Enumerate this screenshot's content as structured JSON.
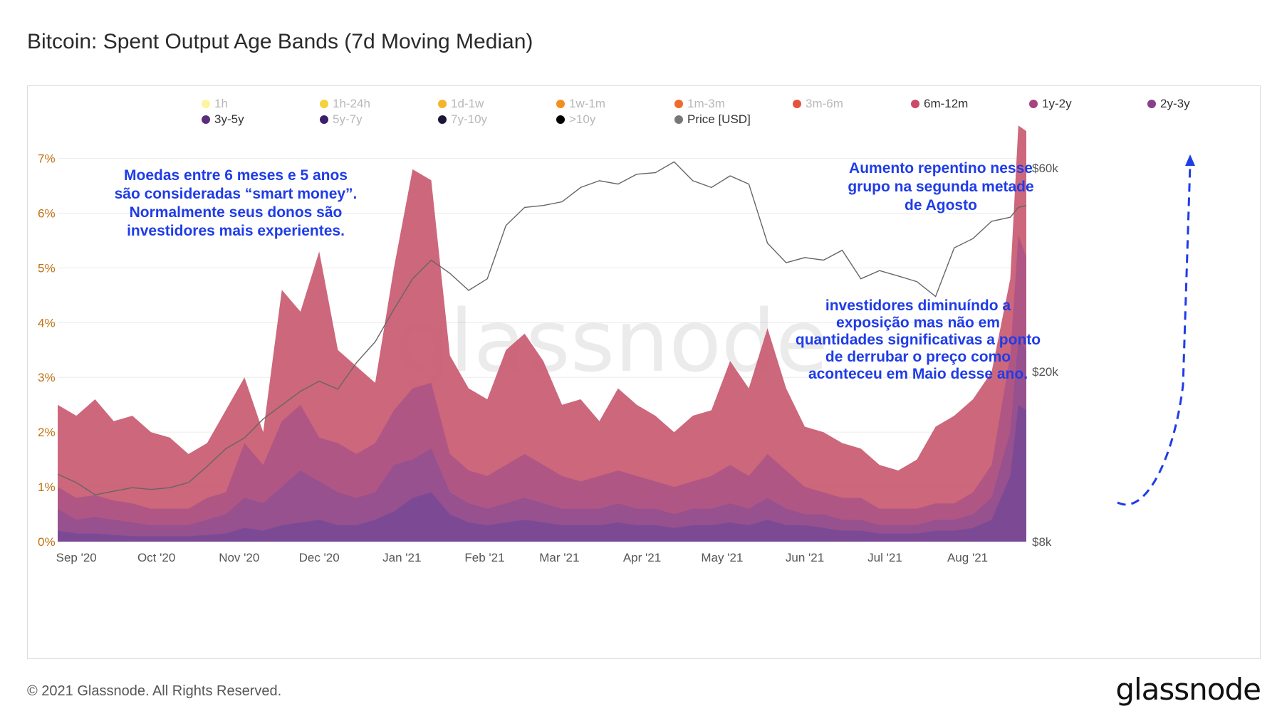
{
  "page": {
    "title": "Bitcoin: Spent Output Age Bands (7d Moving Median)",
    "copyright": "© 2021 Glassnode. All Rights Reserved.",
    "logo": "glassnode",
    "watermark": "glassnode"
  },
  "chart_data": {
    "type": "area",
    "title": "Bitcoin: Spent Output Age Bands (7d Moving Median)",
    "x_ticks": [
      "Sep '20",
      "Oct '20",
      "Nov '20",
      "Dec '20",
      "Jan '21",
      "Feb '21",
      "Mar '21",
      "Apr '21",
      "May '21",
      "Jun '21",
      "Jul '21",
      "Aug '21"
    ],
    "y_left": {
      "ticks": [
        "0%",
        "1%",
        "2%",
        "3%",
        "4%",
        "5%",
        "6%",
        "7%"
      ],
      "ylim": [
        0,
        7.8
      ],
      "unit": "%"
    },
    "y_right": {
      "ticks": [
        "$8k",
        "$20k",
        "$60k"
      ],
      "scale": "log",
      "ylim": [
        8000,
        80000
      ]
    },
    "grid": "horizontal",
    "legend_position": "top",
    "legend": [
      {
        "name": "1h",
        "color": "#fff3a0",
        "active": false
      },
      {
        "name": "1h-24h",
        "color": "#f5d13b",
        "active": false
      },
      {
        "name": "1d-1w",
        "color": "#f5b52a",
        "active": false
      },
      {
        "name": "1w-1m",
        "color": "#f28f1f",
        "active": false
      },
      {
        "name": "1m-3m",
        "color": "#ef6a2e",
        "active": false
      },
      {
        "name": "3m-6m",
        "color": "#e4533f",
        "active": false
      },
      {
        "name": "6m-12m",
        "color": "#cc4a68",
        "active": true
      },
      {
        "name": "1y-2y",
        "color": "#a8437f",
        "active": true
      },
      {
        "name": "2y-3y",
        "color": "#8a3f8a",
        "active": true
      },
      {
        "name": "3y-5y",
        "color": "#5a2e7c",
        "active": true
      },
      {
        "name": "5y-7y",
        "color": "#3a1f6a",
        "active": false
      },
      {
        "name": "7y-10y",
        "color": "#1d1535",
        "active": false
      },
      {
        "name": ">10y",
        "color": "#000000",
        "active": false
      },
      {
        "name": "Price [USD]",
        "color": "#777777",
        "active": true
      }
    ],
    "dates": [
      "2020-08-25",
      "2020-09-01",
      "2020-09-08",
      "2020-09-15",
      "2020-09-22",
      "2020-09-29",
      "2020-10-06",
      "2020-10-13",
      "2020-10-20",
      "2020-10-27",
      "2020-11-03",
      "2020-11-10",
      "2020-11-17",
      "2020-11-24",
      "2020-12-01",
      "2020-12-08",
      "2020-12-15",
      "2020-12-22",
      "2020-12-29",
      "2021-01-05",
      "2021-01-12",
      "2021-01-19",
      "2021-01-26",
      "2021-02-02",
      "2021-02-09",
      "2021-02-16",
      "2021-02-23",
      "2021-03-02",
      "2021-03-09",
      "2021-03-16",
      "2021-03-23",
      "2021-03-30",
      "2021-04-06",
      "2021-04-13",
      "2021-04-20",
      "2021-04-27",
      "2021-05-04",
      "2021-05-11",
      "2021-05-18",
      "2021-05-25",
      "2021-06-01",
      "2021-06-08",
      "2021-06-15",
      "2021-06-22",
      "2021-06-29",
      "2021-07-06",
      "2021-07-13",
      "2021-07-20",
      "2021-07-27",
      "2021-08-03",
      "2021-08-10",
      "2021-08-17",
      "2021-08-20",
      "2021-08-23"
    ],
    "series": [
      {
        "name": "3y-5y",
        "color": "#7a4a96",
        "values": [
          0.2,
          0.15,
          0.15,
          0.12,
          0.1,
          0.1,
          0.1,
          0.1,
          0.12,
          0.15,
          0.25,
          0.2,
          0.3,
          0.35,
          0.4,
          0.3,
          0.3,
          0.4,
          0.55,
          0.8,
          0.9,
          0.5,
          0.35,
          0.3,
          0.35,
          0.4,
          0.35,
          0.3,
          0.3,
          0.3,
          0.35,
          0.3,
          0.3,
          0.25,
          0.3,
          0.3,
          0.35,
          0.3,
          0.4,
          0.3,
          0.3,
          0.25,
          0.2,
          0.2,
          0.15,
          0.15,
          0.15,
          0.2,
          0.2,
          0.25,
          0.4,
          1.2,
          2.5,
          2.4
        ]
      },
      {
        "name": "2y-3y",
        "color": "#94508f",
        "values": [
          0.6,
          0.4,
          0.45,
          0.4,
          0.35,
          0.3,
          0.3,
          0.3,
          0.4,
          0.5,
          0.8,
          0.7,
          1.0,
          1.3,
          1.1,
          0.9,
          0.8,
          0.9,
          1.4,
          1.5,
          1.7,
          0.9,
          0.7,
          0.6,
          0.7,
          0.8,
          0.7,
          0.6,
          0.6,
          0.6,
          0.7,
          0.6,
          0.6,
          0.5,
          0.6,
          0.6,
          0.7,
          0.6,
          0.8,
          0.6,
          0.5,
          0.5,
          0.4,
          0.4,
          0.3,
          0.3,
          0.3,
          0.4,
          0.4,
          0.5,
          0.8,
          2.0,
          3.7,
          3.5
        ]
      },
      {
        "name": "1y-2y",
        "color": "#ae5586",
        "values": [
          1.0,
          0.8,
          0.85,
          0.75,
          0.7,
          0.6,
          0.6,
          0.6,
          0.8,
          0.9,
          1.8,
          1.4,
          2.2,
          2.5,
          1.9,
          1.8,
          1.6,
          1.8,
          2.4,
          2.8,
          2.9,
          1.6,
          1.3,
          1.2,
          1.4,
          1.6,
          1.4,
          1.2,
          1.1,
          1.2,
          1.3,
          1.2,
          1.1,
          1.0,
          1.1,
          1.2,
          1.4,
          1.2,
          1.6,
          1.3,
          1.0,
          0.9,
          0.8,
          0.8,
          0.6,
          0.6,
          0.6,
          0.7,
          0.7,
          0.9,
          1.4,
          3.4,
          5.6,
          5.2
        ]
      },
      {
        "name": "6m-12m",
        "color": "#c95a70",
        "values": [
          2.5,
          2.3,
          2.6,
          2.2,
          2.3,
          2.0,
          1.9,
          1.6,
          1.8,
          2.4,
          3.0,
          2.0,
          4.6,
          4.2,
          5.3,
          3.5,
          3.2,
          2.9,
          5.0,
          6.8,
          6.6,
          3.4,
          2.8,
          2.6,
          3.5,
          3.8,
          3.3,
          2.5,
          2.6,
          2.2,
          2.8,
          2.5,
          2.3,
          2.0,
          2.3,
          2.4,
          3.3,
          2.8,
          3.9,
          2.8,
          2.1,
          2.0,
          1.8,
          1.7,
          1.4,
          1.3,
          1.5,
          2.1,
          2.3,
          2.6,
          3.1,
          4.8,
          7.6,
          7.5
        ]
      }
    ],
    "price": {
      "name": "Price [USD]",
      "color": "#666666",
      "values": [
        11500,
        11000,
        10300,
        10500,
        10700,
        10600,
        10700,
        11000,
        12000,
        13200,
        14000,
        15500,
        16700,
        18000,
        19000,
        18200,
        21000,
        23500,
        28000,
        33000,
        36500,
        34000,
        31000,
        33000,
        44000,
        48500,
        49000,
        50000,
        54000,
        56000,
        55000,
        58000,
        58500,
        62000,
        56000,
        54000,
        57500,
        55000,
        40000,
        36000,
        37000,
        36500,
        38500,
        33000,
        34500,
        33500,
        32500,
        30000,
        39000,
        41000,
        45000,
        46000,
        48500,
        49000
      ]
    },
    "annotations": [
      "Moedas entre 6 meses e 5 anos\nsão consideradas “smart money”.\nNormalmente seus donos são\ninvestidores mais experientes.",
      "Aumento repentino nesse\ngrupo na segunda metade\nde Agosto",
      "investidores diminuíndo a\nexposição mas não em\nquantidades significativas a ponto\nde derrubar o preço como\naconteceu em Maio desse ano."
    ]
  }
}
